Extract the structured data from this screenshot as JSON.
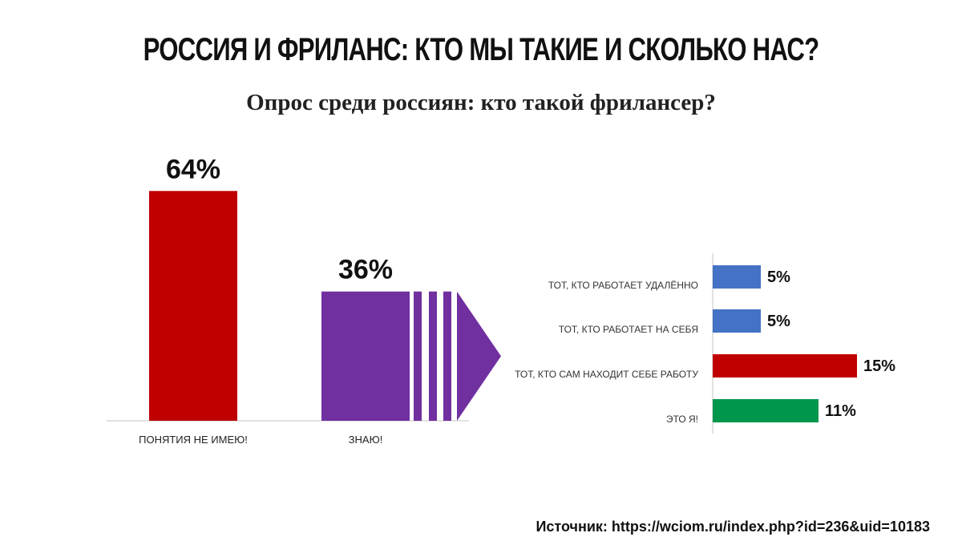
{
  "title": "РОССИЯ И ФРИЛАНС: КТО МЫ ТАКИЕ И СКОЛЬКО НАС?",
  "subtitle": "Опрос среди россиян: кто такой фрилансер?",
  "source": "Источник: https://wciom.ru/index.php?id=236&uid=10183",
  "chart_data": [
    {
      "type": "bar",
      "orientation": "vertical",
      "categories": [
        "ПОНЯТИЯ НЕ ИМЕЮ!",
        "ЗНАЮ!"
      ],
      "values": [
        64,
        36
      ],
      "value_labels": [
        "64%",
        "36%"
      ],
      "colors": [
        "#c00000",
        "#7030a0"
      ],
      "grid": false
    },
    {
      "type": "bar",
      "orientation": "horizontal",
      "categories": [
        "ТОТ, КТО РАБОТАЕТ УДАЛЁННО",
        "ТОТ, КТО РАБОТАЕТ НА СЕБЯ",
        "ТОТ, КТО САМ НАХОДИТ СЕБЕ РАБОТУ",
        "ЭТО Я!"
      ],
      "values": [
        5,
        5,
        15,
        11
      ],
      "value_labels": [
        "5%",
        "5%",
        "15%",
        "11%"
      ],
      "colors": [
        "#4472c4",
        "#4472c4",
        "#c00000",
        "#00964b"
      ],
      "grid": false
    }
  ],
  "colors": {
    "arrow": "#7030a0",
    "axis": "#d9d9d9"
  }
}
